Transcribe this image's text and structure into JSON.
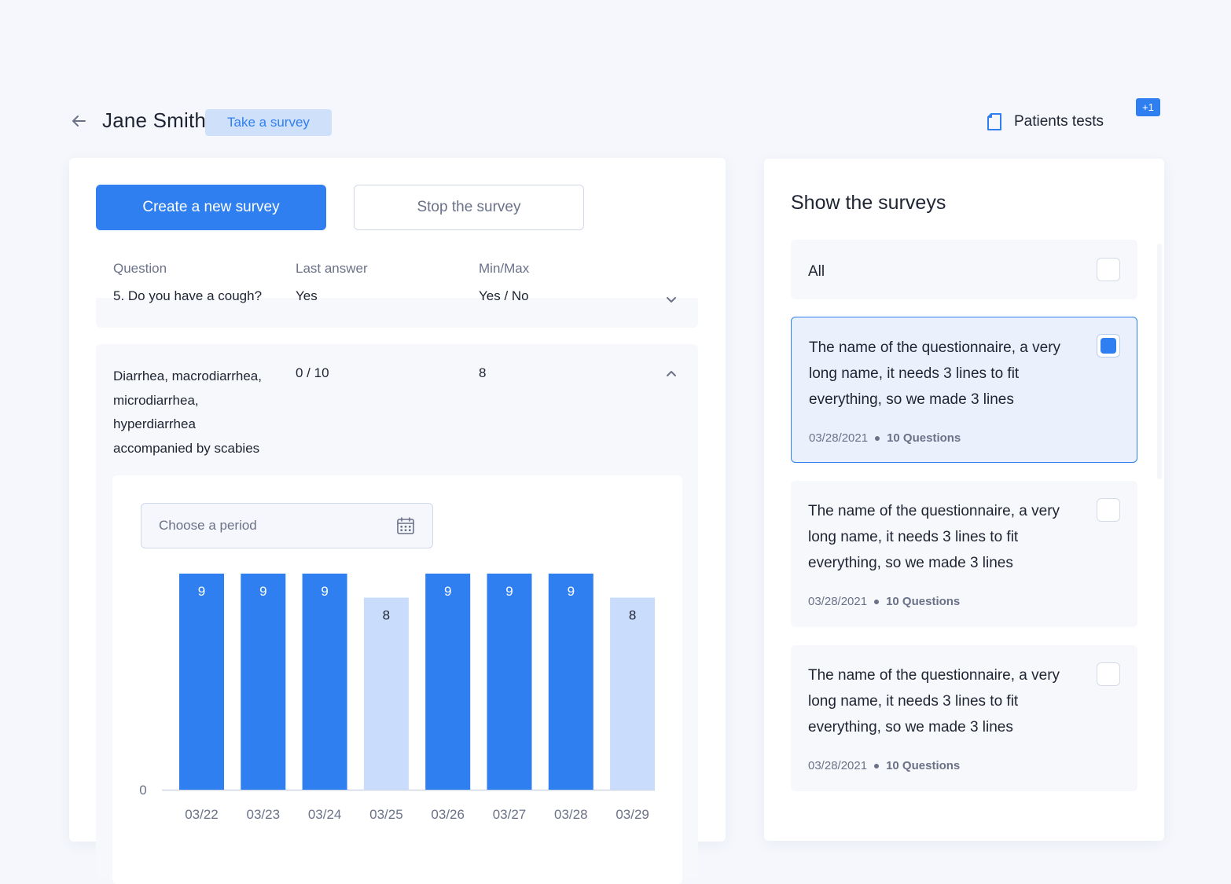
{
  "header": {
    "patient_name": "Jane Smith",
    "badge_label": "Take a survey",
    "tests_label": "Patients tests",
    "tests_count": "+1"
  },
  "actions": {
    "create_label": "Create a new survey",
    "stop_label": "Stop the survey"
  },
  "table": {
    "columns": [
      "Question",
      "Last answer",
      "Min/Max"
    ],
    "rows": [
      {
        "question": "5. Do you have a cough?",
        "last_answer": "Yes",
        "min_max": "Yes / No",
        "expanded": false
      },
      {
        "question": "Diarrhea, macrodiarrhea, microdiarrhea, hyperdiarrhea accompanied by scabies",
        "last_answer": "0 / 10",
        "min_max": "8",
        "expanded": true
      }
    ]
  },
  "period": {
    "placeholder": "Choose a period"
  },
  "chart_data": {
    "type": "bar",
    "categories": [
      "03/22",
      "03/23",
      "03/24",
      "03/25",
      "03/26",
      "03/27",
      "03/28",
      "03/29"
    ],
    "values": [
      9,
      9,
      9,
      8,
      9,
      9,
      9,
      8
    ],
    "highlight": [
      true,
      true,
      true,
      false,
      true,
      true,
      true,
      false
    ],
    "ylim": [
      0,
      9
    ],
    "ytick_labels": [
      "0"
    ],
    "colors": {
      "strong": "#2f7ff0",
      "light": "#c9dcfb",
      "label_on_strong": "#ffffff",
      "label_on_light": "#1f2433"
    }
  },
  "surveys_panel": {
    "title": "Show the surveys",
    "all_label": "All",
    "all_checked": false,
    "items": [
      {
        "name": "The name of the questionnaire, a very long name, it needs 3 lines to fit everything, so we made 3 lines",
        "date": "03/28/2021",
        "questions": "10 Questions",
        "checked": true
      },
      {
        "name": "The name of the questionnaire, a very long name, it needs 3 lines to fit everything, so we made 3 lines",
        "date": "03/28/2021",
        "questions": "10 Questions",
        "checked": false
      },
      {
        "name": "The name of the questionnaire, a very long name, it needs 3 lines to fit everything, so we made 3 lines",
        "date": "03/28/2021",
        "questions": "10 Questions",
        "checked": false
      }
    ]
  },
  "colors": {
    "accent": "#2f7ff0",
    "accent_light": "#cfe0fb",
    "background": "#f5f7fc"
  }
}
